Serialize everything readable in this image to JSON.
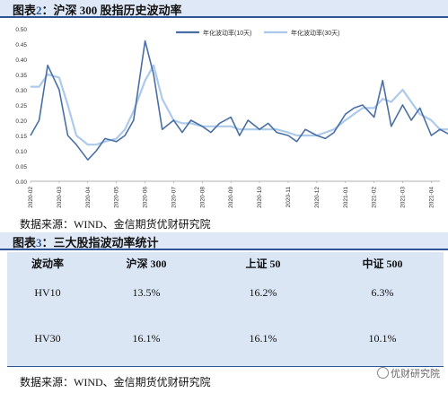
{
  "figure1": {
    "label": "图表",
    "number": "2",
    "sep": "：",
    "title": "沪深 300 股指历史波动率"
  },
  "figure2": {
    "label": "图表",
    "number": "3",
    "sep": "：",
    "title": "三大股指波动率统计"
  },
  "source_note": "数据来源：WIND、金信期货优财研究院",
  "watermark": "优财研究院",
  "colors": {
    "series1": "#4a6fa5",
    "series2": "#a9c7ea",
    "header_bg": "#dfe8f7",
    "table_bg": "#dbe6f5",
    "accent": "#2e5597"
  },
  "chart_data": {
    "type": "line",
    "title": "",
    "xlabel": "",
    "ylabel": "",
    "ylim": [
      0,
      0.5
    ],
    "y_ticks": [
      "0.00",
      "0.05",
      "0.10",
      "0.15",
      "0.20",
      "0.25",
      "0.30",
      "0.35",
      "0.40",
      "0.45",
      "0.50"
    ],
    "x_ticks": [
      "2020-02",
      "2020-03",
      "2020-04",
      "2020-05",
      "2020-06",
      "2020-07",
      "2020-08",
      "2020-09",
      "2020-10",
      "2020-11",
      "2020-12",
      "2021-01",
      "2021-02",
      "2021-03",
      "2021-04"
    ],
    "legend_position": "top-right",
    "x_index": [
      0,
      0.3,
      0.6,
      1,
      1.3,
      1.6,
      2,
      2.3,
      2.6,
      3,
      3.3,
      3.6,
      4,
      4.3,
      4.6,
      5,
      5.3,
      5.6,
      6,
      6.3,
      6.6,
      7,
      7.3,
      7.6,
      8,
      8.3,
      8.6,
      9,
      9.3,
      9.6,
      10,
      10.3,
      10.6,
      11,
      11.3,
      11.6,
      12,
      12.3,
      12.6,
      13,
      13.3,
      13.6,
      14,
      14.3,
      14.7
    ],
    "series": [
      {
        "name": "年化波动率(10天)",
        "values": [
          0.15,
          0.2,
          0.38,
          0.3,
          0.15,
          0.12,
          0.07,
          0.1,
          0.14,
          0.13,
          0.15,
          0.2,
          0.46,
          0.35,
          0.17,
          0.2,
          0.16,
          0.2,
          0.18,
          0.16,
          0.19,
          0.21,
          0.15,
          0.2,
          0.17,
          0.19,
          0.16,
          0.15,
          0.13,
          0.17,
          0.15,
          0.14,
          0.16,
          0.22,
          0.24,
          0.25,
          0.21,
          0.33,
          0.18,
          0.25,
          0.2,
          0.24,
          0.15,
          0.17,
          0.15
        ]
      },
      {
        "name": "年化波动率(30天)",
        "values": [
          0.31,
          0.31,
          0.35,
          0.34,
          0.25,
          0.15,
          0.12,
          0.12,
          0.13,
          0.14,
          0.17,
          0.23,
          0.33,
          0.38,
          0.27,
          0.2,
          0.19,
          0.19,
          0.18,
          0.18,
          0.18,
          0.18,
          0.17,
          0.17,
          0.17,
          0.17,
          0.17,
          0.16,
          0.15,
          0.15,
          0.15,
          0.16,
          0.17,
          0.2,
          0.22,
          0.24,
          0.24,
          0.27,
          0.26,
          0.3,
          0.26,
          0.22,
          0.2,
          0.17,
          0.17
        ]
      }
    ]
  },
  "table": {
    "headers": [
      "波动率",
      "沪深 300",
      "上证 50",
      "中证 500"
    ],
    "rows": [
      [
        "HV10",
        "13.5%",
        "16.2%",
        "6.3%"
      ],
      [
        "HV30",
        "16.1%",
        "16.1%",
        "10.1%"
      ]
    ]
  }
}
